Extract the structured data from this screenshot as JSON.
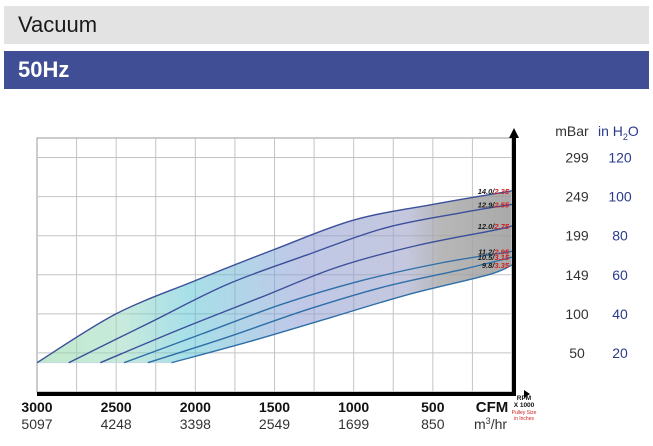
{
  "header": {
    "title": "Vacuum",
    "frequency": "50Hz"
  },
  "colors": {
    "header_bg": "#e3e3e3",
    "freq_bg": "#3f4e95",
    "unit_blue": "#2a3a8c",
    "pulley_red": "#d22020"
  },
  "chart_data": {
    "type": "line",
    "x_ticks_cfm": [
      "3000",
      "2500",
      "2000",
      "1500",
      "1000",
      "500"
    ],
    "x_ticks_m3hr": [
      "5097",
      "4248",
      "3398",
      "2549",
      "1699",
      "850"
    ],
    "x_unit_cfm": "CFM",
    "x_unit_m3hr_base": "m",
    "x_unit_m3hr_sup": "3",
    "x_unit_m3hr_rest": "/hr",
    "y_unit_mbar": "mBar",
    "y_unit_inh2o_base": "in H",
    "y_unit_inh2o_sub": "2",
    "y_unit_inh2o_rest": "O",
    "y_ticks_mbar": [
      "299",
      "249",
      "199",
      "149",
      "100",
      "50"
    ],
    "y_ticks_inh2o": [
      "120",
      "100",
      "80",
      "60",
      "40",
      "20"
    ],
    "xlim_cfm": [
      3000,
      0
    ],
    "ylim_inh2o": [
      0,
      130
    ],
    "rpm_label_1": "RPM",
    "rpm_label_2": "X 1000",
    "pulley_label_1": "Pulley Size",
    "pulley_label_2": "in Inches",
    "series": [
      {
        "rpm": "14.0",
        "pulley": "2.35",
        "x": [
          3000,
          2500,
          2000,
          1500,
          1000,
          500,
          0
        ],
        "y": [
          15,
          40,
          57,
          73,
          88,
          96,
          103
        ]
      },
      {
        "rpm": "12.9",
        "pulley": "2.55",
        "x": [
          2800,
          2300,
          1800,
          1300,
          800,
          300,
          0
        ],
        "y": [
          15,
          35,
          55,
          70,
          84,
          92,
          96
        ]
      },
      {
        "rpm": "12.0",
        "pulley": "2.75",
        "x": [
          2600,
          2100,
          1600,
          1100,
          600,
          100,
          0
        ],
        "y": [
          15,
          32,
          48,
          64,
          75,
          83,
          85
        ]
      },
      {
        "rpm": "11.2",
        "pulley": "2.95",
        "x": [
          2450,
          1950,
          1450,
          950,
          450,
          0
        ],
        "y": [
          15,
          30,
          45,
          57,
          66,
          72
        ]
      },
      {
        "rpm": "10.5",
        "pulley": "3.15",
        "x": [
          2300,
          1800,
          1300,
          800,
          300,
          0
        ],
        "y": [
          15,
          28,
          42,
          54,
          63,
          69
        ]
      },
      {
        "rpm": "9.8",
        "pulley": "3.35",
        "x": [
          2150,
          1650,
          1150,
          650,
          150,
          0
        ],
        "y": [
          15,
          26,
          38,
          50,
          60,
          65
        ]
      }
    ],
    "grid": true
  }
}
